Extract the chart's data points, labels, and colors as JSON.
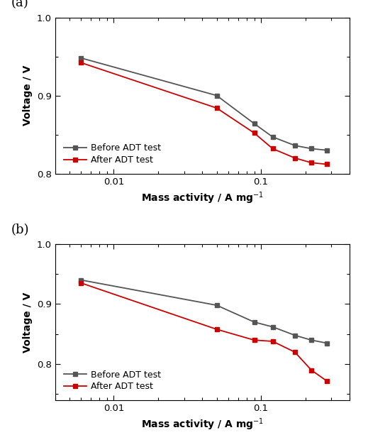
{
  "panel_a": {
    "label": "(a)",
    "before_x": [
      0.006,
      0.05,
      0.09,
      0.12,
      0.17,
      0.22,
      0.28
    ],
    "before_y": [
      0.948,
      0.9,
      0.864,
      0.847,
      0.836,
      0.832,
      0.83
    ],
    "after_x": [
      0.006,
      0.05,
      0.09,
      0.12,
      0.17,
      0.22,
      0.28
    ],
    "after_y": [
      0.942,
      0.884,
      0.852,
      0.832,
      0.82,
      0.814,
      0.812
    ],
    "ylim": [
      0.8,
      1.0
    ],
    "yticks": [
      0.8,
      0.9,
      1.0
    ],
    "xlim": [
      0.004,
      0.4
    ],
    "xlabel": "Mass activity / A mg$^{-1}$",
    "ylabel": "Voltage / V",
    "legend_before": "Before ADT test",
    "legend_after": "After ADT test"
  },
  "panel_b": {
    "label": "(b)",
    "before_x": [
      0.006,
      0.05,
      0.09,
      0.12,
      0.17,
      0.22,
      0.28
    ],
    "before_y": [
      0.94,
      0.898,
      0.87,
      0.862,
      0.848,
      0.84,
      0.835
    ],
    "after_x": [
      0.006,
      0.05,
      0.09,
      0.12,
      0.17,
      0.22,
      0.28
    ],
    "after_y": [
      0.935,
      0.858,
      0.84,
      0.838,
      0.82,
      0.79,
      0.772
    ],
    "ylim": [
      0.74,
      1.0
    ],
    "yticks": [
      0.8,
      0.9,
      1.0
    ],
    "xlim": [
      0.004,
      0.4
    ],
    "xlabel": "Mass activity / A mg$^{-1}$",
    "ylabel": "Voltage / V",
    "legend_before": "Before ADT test",
    "legend_after": "After ADT test"
  },
  "before_color": "#555555",
  "after_color": "#cc0000",
  "marker": "s",
  "markersize": 4.5,
  "linewidth": 1.3,
  "background_color": "#ffffff"
}
